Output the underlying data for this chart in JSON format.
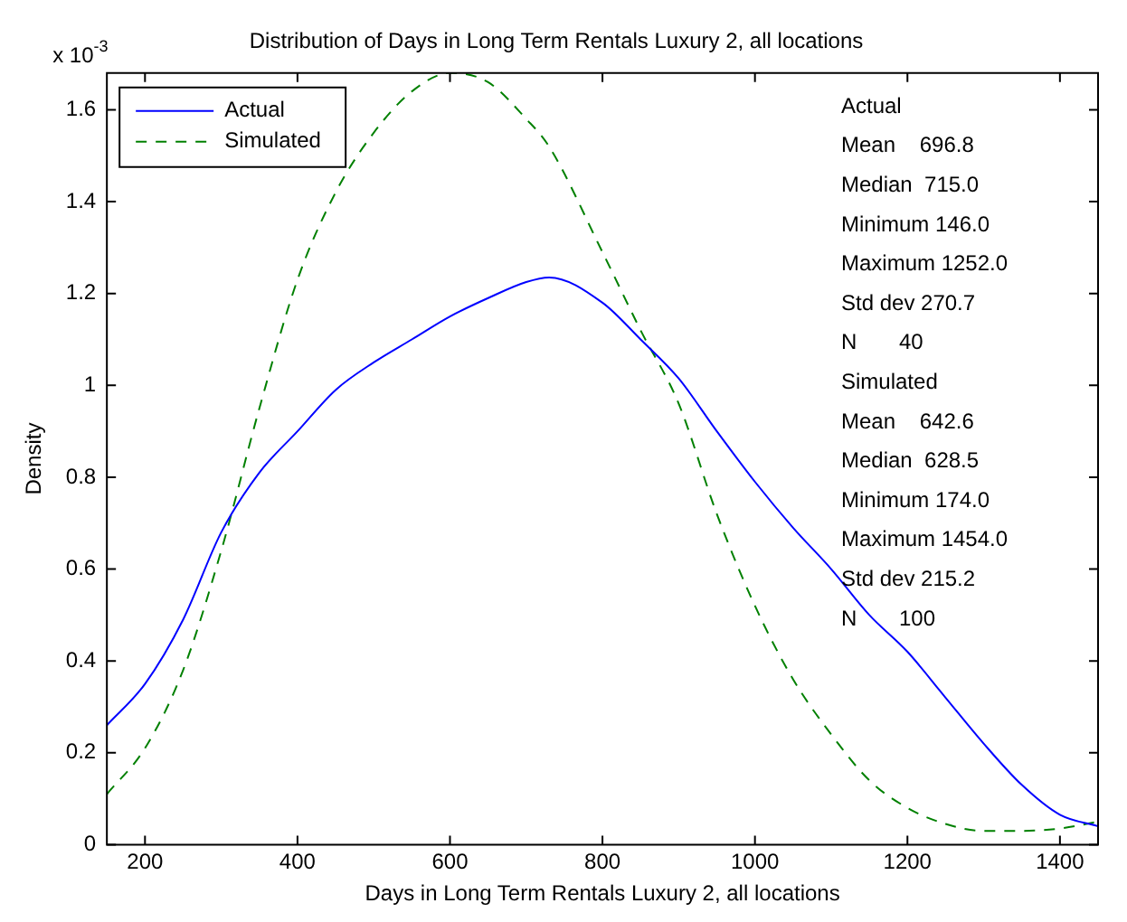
{
  "chart_data": {
    "type": "line",
    "title": "Distribution of Days in Long Term Rentals Luxury 2, all locations",
    "xlabel": "Days in Long Term Rentals Luxury 2, all locations",
    "ylabel": "Density",
    "x": [
      150,
      200,
      250,
      300,
      350,
      400,
      450,
      500,
      550,
      600,
      650,
      700,
      730,
      800,
      850,
      900,
      950,
      1000,
      1050,
      1100,
      1150,
      1200,
      1250,
      1300,
      1350,
      1400,
      1450
    ],
    "series": [
      {
        "name": "Actual",
        "color": "#0000ff",
        "line_style": "solid",
        "values": [
          0.26,
          0.35,
          0.49,
          0.68,
          0.81,
          0.9,
          0.99,
          1.05,
          1.1,
          1.15,
          1.19,
          1.225,
          1.235,
          1.18,
          1.1,
          1.015,
          0.9,
          0.79,
          0.69,
          0.6,
          0.5,
          0.42,
          0.32,
          0.22,
          0.13,
          0.065,
          0.04
        ]
      },
      {
        "name": "Simulated",
        "color": "#008000",
        "line_style": "dashed",
        "values": [
          0.11,
          0.21,
          0.38,
          0.64,
          0.95,
          1.23,
          1.42,
          1.55,
          1.64,
          1.68,
          1.66,
          1.58,
          1.52,
          1.29,
          1.12,
          0.96,
          0.72,
          0.52,
          0.36,
          0.24,
          0.14,
          0.08,
          0.045,
          0.03,
          0.03,
          0.035,
          0.05
        ]
      }
    ],
    "xlim": [
      150,
      1450
    ],
    "xticks": [
      200,
      400,
      600,
      800,
      1000,
      1200,
      1400
    ],
    "ylim": [
      0,
      1.68
    ],
    "yticks": [
      0,
      0.2,
      0.4,
      0.6,
      0.8,
      1,
      1.2,
      1.4,
      1.6
    ],
    "grid": false,
    "legend": "top left",
    "marker": "none",
    "annotations": [
      "x 10$^{-3}$",
      "Actual",
      "Mean    696.8",
      "Median  715.0",
      "Minimum 146.0",
      "Maximum 1252.0",
      "Std dev 270.7",
      "N       40",
      "Simulated",
      "Mean    642.6",
      "Median  628.5",
      "Minimum 174.0",
      "Maximum 1454.0",
      "Std dev 215.2",
      "N       100"
    ]
  }
}
